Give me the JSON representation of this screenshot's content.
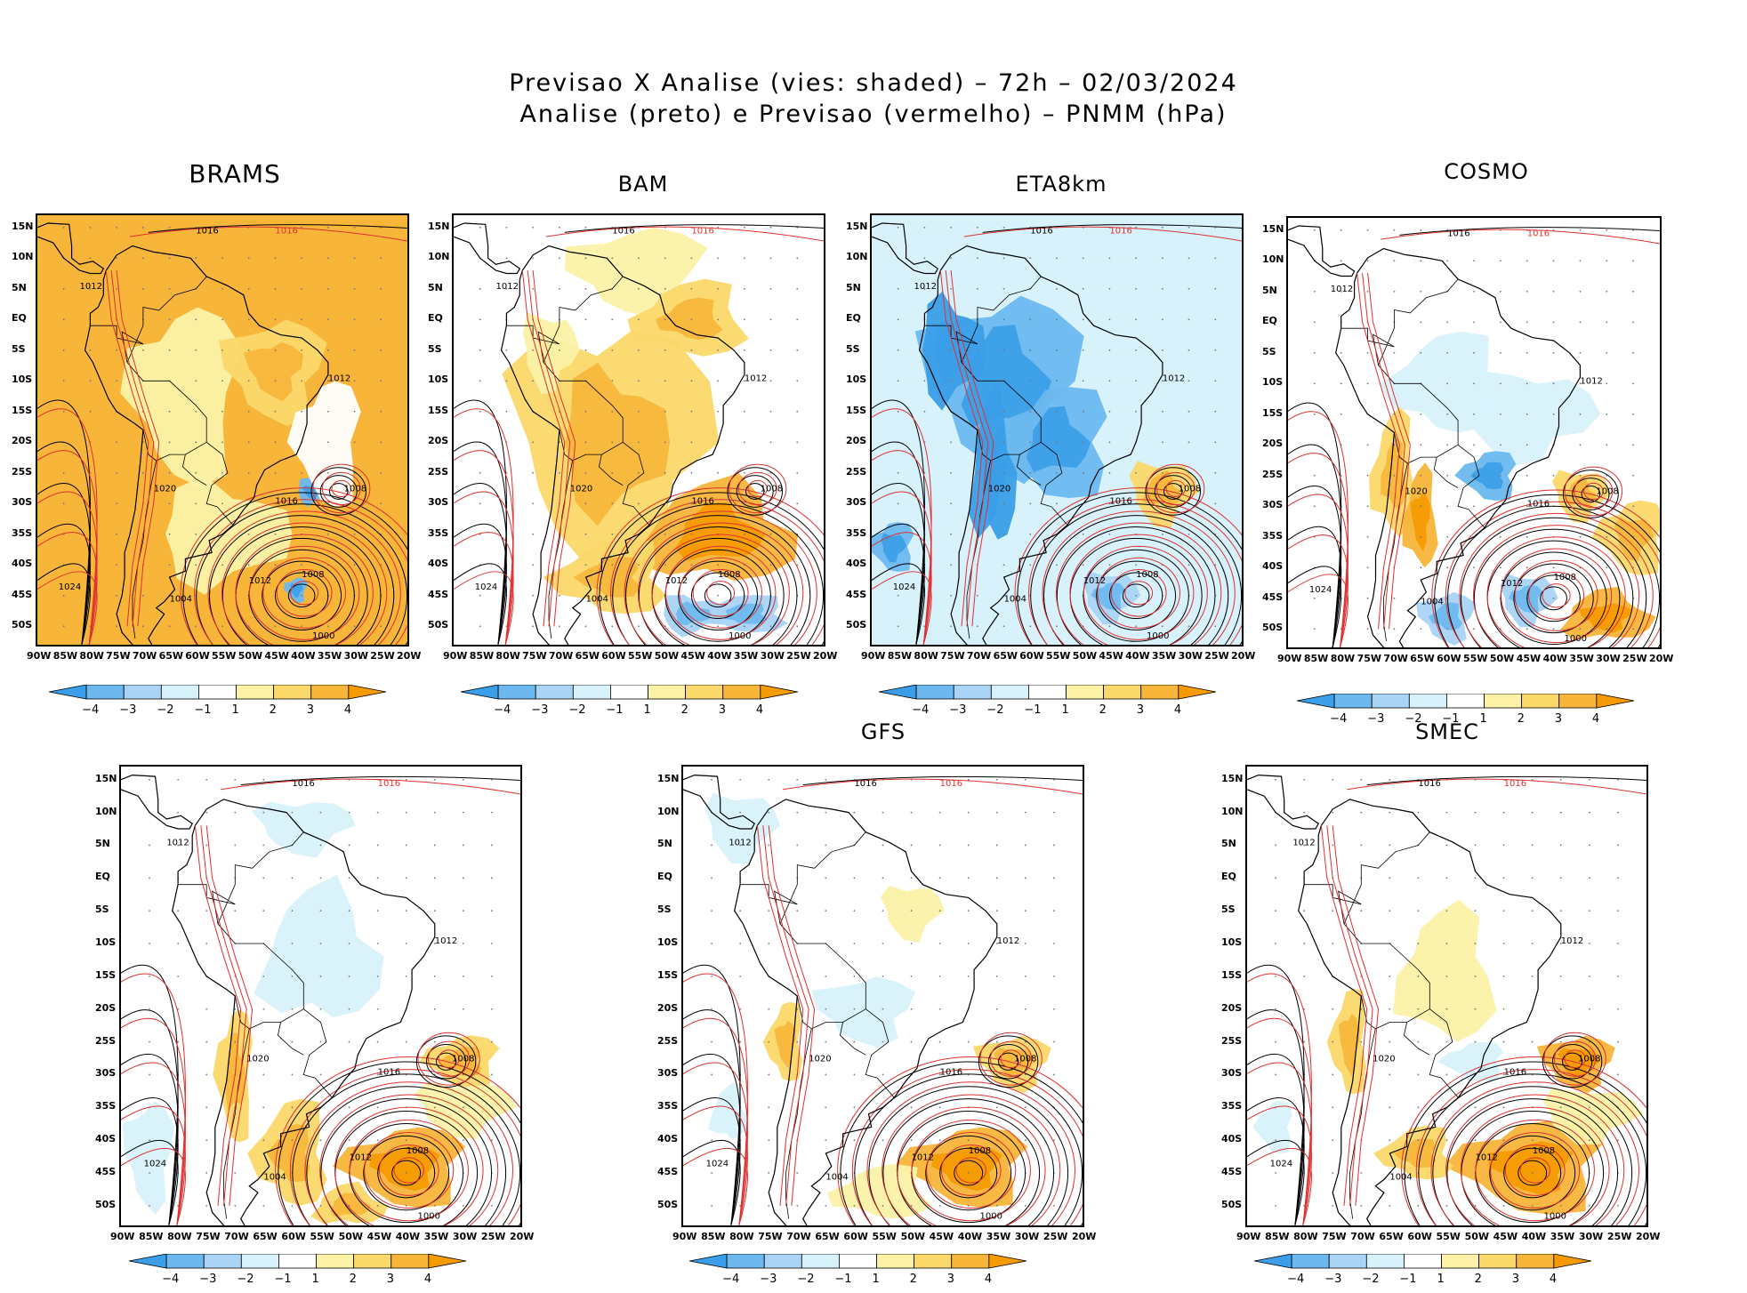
{
  "title": {
    "line1": "Previsao X Analise (vies: shaded) – 72h – 02/03/2024",
    "line2": "Analise (preto) e Previsao (vermelho) – PNMM (hPa)"
  },
  "lat_labels": [
    "15N",
    "10N",
    "5N",
    "EQ",
    "5S",
    "10S",
    "15S",
    "20S",
    "25S",
    "30S",
    "35S",
    "40S",
    "45S",
    "50S"
  ],
  "lon_labels": [
    "90W",
    "85W",
    "80W",
    "75W",
    "70W",
    "65W",
    "60W",
    "55W",
    "50W",
    "45W",
    "40W",
    "35W",
    "30W",
    "25W",
    "20W"
  ],
  "colorbar": {
    "labels": [
      "−4",
      "−3",
      "−2",
      "−1",
      "1",
      "2",
      "3",
      "4"
    ],
    "colors": [
      "#3a9ee8",
      "#6cb8ef",
      "#a9d4f6",
      "#d8f2fb",
      "#ffffff",
      "#fbf2a8",
      "#fbd86a",
      "#f7b53a",
      "#f59a00"
    ]
  },
  "panels": [
    {
      "name": "BRAMS",
      "bias": "warm-strong"
    },
    {
      "name": "BAM",
      "bias": "warm"
    },
    {
      "name": "ETA8km",
      "bias": "cold"
    },
    {
      "name": "COSMO",
      "bias": "mixed"
    },
    {
      "name": "",
      "bias": "mixed-cold"
    },
    {
      "name": "GFS",
      "bias": "neutral"
    },
    {
      "name": "SMEC",
      "bias": "neutral-warm"
    }
  ],
  "isobars": {
    "analysis_color": "#000000",
    "forecast_color": "#e03030",
    "labels": [
      "1016",
      "1016",
      "1012",
      "1012",
      "1008",
      "1008",
      "1012",
      "1016",
      "1004",
      "1000",
      "1020",
      "1024"
    ]
  }
}
